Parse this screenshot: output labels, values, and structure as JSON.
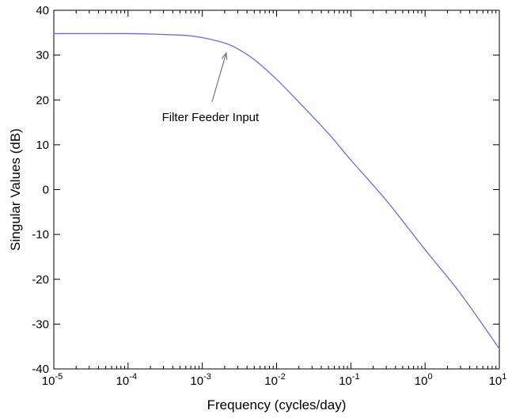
{
  "chart_data": {
    "type": "line",
    "title": "",
    "xlabel": "Frequency (cycles/day)",
    "ylabel": "Singular Values (dB)",
    "xscale": "log",
    "xlim": [
      1e-05,
      10
    ],
    "ylim": [
      -40,
      40
    ],
    "grid": false,
    "x_ticks": [
      {
        "base": "10",
        "exp": "-5",
        "value": 1e-05
      },
      {
        "base": "10",
        "exp": "-4",
        "value": 0.0001
      },
      {
        "base": "10",
        "exp": "-3",
        "value": 0.001
      },
      {
        "base": "10",
        "exp": "-2",
        "value": 0.01
      },
      {
        "base": "10",
        "exp": "-1",
        "value": 0.1
      },
      {
        "base": "10",
        "exp": "0",
        "value": 1
      },
      {
        "base": "10",
        "exp": "1",
        "value": 10
      }
    ],
    "y_ticks": [
      "40",
      "30",
      "20",
      "10",
      "0",
      "-10",
      "-20",
      "-30",
      "-40"
    ],
    "series": [
      {
        "color": "#6a6ae8",
        "points": [
          {
            "x": 1e-05,
            "y": 34.8
          },
          {
            "x": 0.0001,
            "y": 34.8
          },
          {
            "x": 0.0003,
            "y": 34.6
          },
          {
            "x": 0.0006,
            "y": 34.4
          },
          {
            "x": 0.001,
            "y": 33.9
          },
          {
            "x": 0.002,
            "y": 32.7
          },
          {
            "x": 0.003,
            "y": 31.4
          },
          {
            "x": 0.005,
            "y": 29.0
          },
          {
            "x": 0.01,
            "y": 24.6
          },
          {
            "x": 0.02,
            "y": 19.5
          },
          {
            "x": 0.05,
            "y": 12.5
          },
          {
            "x": 0.1,
            "y": 6.6
          },
          {
            "x": 0.3,
            "y": -2.4
          },
          {
            "x": 1,
            "y": -13.4
          },
          {
            "x": 3,
            "y": -23.2
          },
          {
            "x": 10,
            "y": -35.5
          }
        ]
      }
    ],
    "annotations": [
      {
        "text": "Filter Feeder Input",
        "arrow_x": 0.0021,
        "arrow_y": 30.5
      }
    ]
  }
}
